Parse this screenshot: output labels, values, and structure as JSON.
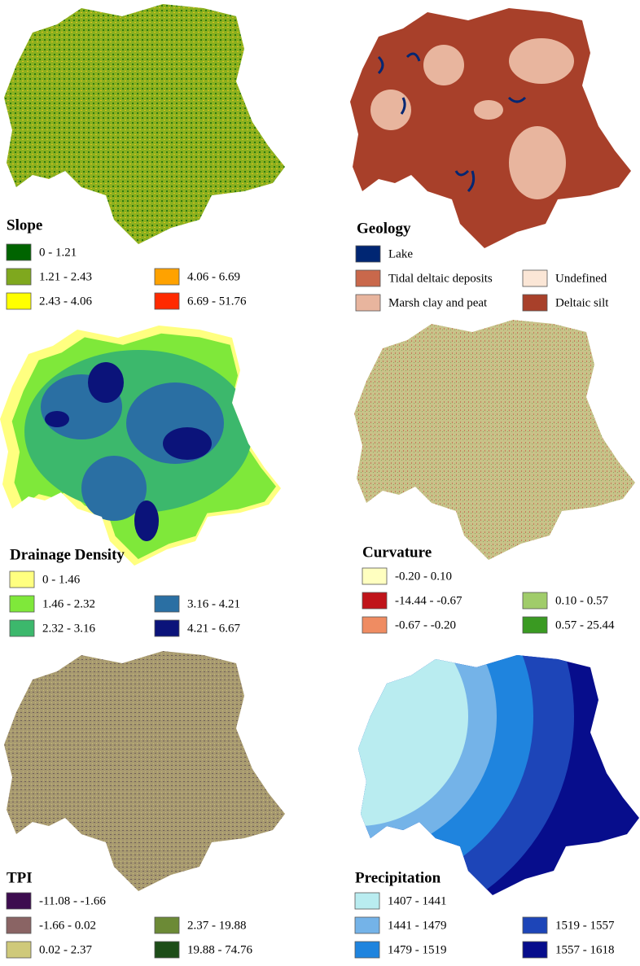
{
  "panels": [
    {
      "title": "Slope",
      "items": [
        {
          "label": "0 - 1.21",
          "color": "#006400"
        },
        {
          "label": "1.21 - 2.43",
          "color": "#7fa81e"
        },
        {
          "label": "2.43 - 4.06",
          "color": "#ffff00"
        },
        {
          "label": "4.06 - 6.69",
          "color": "#ffa200"
        },
        {
          "label": "6.69 - 51.76",
          "color": "#ff2a00"
        }
      ]
    },
    {
      "title": "Geology",
      "items": [
        {
          "label": "Lake",
          "color": "#002673"
        },
        {
          "label": "Tidal deltaic deposits",
          "color": "#c9684b"
        },
        {
          "label": "Marsh clay and peat",
          "color": "#e8b59e"
        },
        {
          "label": "Undefined",
          "color": "#fbe6d6"
        },
        {
          "label": "Deltaic silt",
          "color": "#a8402a"
        }
      ]
    },
    {
      "title": "Drainage Density",
      "items": [
        {
          "label": "0 - 1.46",
          "color": "#ffff80"
        },
        {
          "label": "1.46 - 2.32",
          "color": "#7fe83a"
        },
        {
          "label": "2.32 - 3.16",
          "color": "#3cb86c"
        },
        {
          "label": "3.16 - 4.21",
          "color": "#2a6fa3"
        },
        {
          "label": "4.21 - 6.67",
          "color": "#0b137a"
        }
      ]
    },
    {
      "title": "Curvature",
      "items": [
        {
          "label": "-0.20 - 0.10",
          "color": "#ffffc0"
        },
        {
          "label": "-14.44 - -0.67",
          "color": "#c0141a"
        },
        {
          "label": "-0.67 - -0.20",
          "color": "#ef8c62"
        },
        {
          "label": "0.10 - 0.57",
          "color": "#a0cc6a"
        },
        {
          "label": "0.57 - 25.44",
          "color": "#3a9a22"
        }
      ]
    },
    {
      "title": "TPI",
      "items": [
        {
          "label": "-11.08 - -1.66",
          "color": "#3d0c4f"
        },
        {
          "label": "-1.66 - 0.02",
          "color": "#8a6464"
        },
        {
          "label": "0.02 - 2.37",
          "color": "#cfc97a"
        },
        {
          "label": "2.37 - 19.88",
          "color": "#6c8a36"
        },
        {
          "label": "19.88 - 74.76",
          "color": "#1d4d18"
        }
      ]
    },
    {
      "title": "Precipitation",
      "items": [
        {
          "label": "1407 - 1441",
          "color": "#b9ecf0"
        },
        {
          "label": "1441 - 1479",
          "color": "#74b3e8"
        },
        {
          "label": "1479 - 1519",
          "color": "#1f84de"
        },
        {
          "label": "1519 - 1557",
          "color": "#1d45b8"
        },
        {
          "label": "1557 - 1618",
          "color": "#070d8c"
        }
      ]
    }
  ]
}
